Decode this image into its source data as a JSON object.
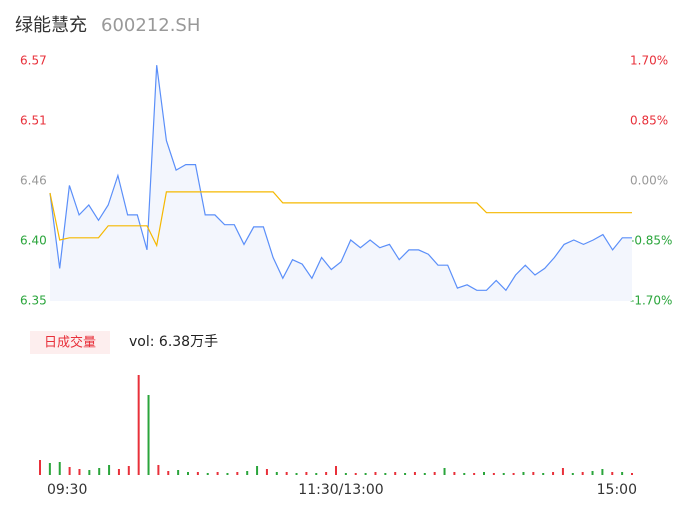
{
  "chart_data": [
    {
      "type": "line",
      "title": "绿能慧充",
      "subtitle": "600212.SH",
      "x": [
        0,
        4,
        8,
        12,
        16,
        20,
        24,
        28,
        32,
        36,
        40,
        44,
        48,
        52,
        56,
        60,
        64,
        68,
        72,
        76,
        80,
        84,
        88,
        92,
        96,
        100,
        104,
        108,
        112,
        116,
        120,
        124,
        128,
        132,
        136,
        140,
        144,
        148,
        152,
        156,
        160,
        164,
        168,
        172,
        176,
        180,
        184,
        188,
        192,
        196,
        200,
        204,
        208,
        212,
        216,
        220,
        224,
        228,
        232,
        236,
        240
      ],
      "xlim": [
        0,
        240
      ],
      "xticks": [
        {
          "value": 0,
          "label": "09:30"
        },
        {
          "value": 120,
          "label": "11:30/13:00"
        },
        {
          "value": 240,
          "label": "15:00"
        }
      ],
      "series": [
        {
          "color": "#5b8ff9",
          "values": [
            6.449,
            6.38,
            6.456,
            6.429,
            6.438,
            6.424,
            6.438,
            6.465,
            6.429,
            6.429,
            6.397,
            6.566,
            6.497,
            6.47,
            6.475,
            6.475,
            6.429,
            6.429,
            6.42,
            6.42,
            6.402,
            6.418,
            6.418,
            6.39,
            6.371,
            6.388,
            6.384,
            6.371,
            6.39,
            6.379,
            6.386,
            6.406,
            6.399,
            6.406,
            6.399,
            6.402,
            6.388,
            6.397,
            6.397,
            6.393,
            6.383,
            6.383,
            6.362,
            6.365,
            6.36,
            6.36,
            6.369,
            6.36,
            6.374,
            6.383,
            6.374,
            6.38,
            6.39,
            6.402,
            6.406,
            6.402,
            6.406,
            6.411,
            6.397,
            6.408,
            6.408
          ]
        },
        {
          "color": "#f5b800",
          "values": [
            6.449,
            6.406,
            6.408,
            6.408,
            6.408,
            6.408,
            6.419,
            6.419,
            6.419,
            6.419,
            6.419,
            6.401,
            6.45,
            6.45,
            6.45,
            6.45,
            6.45,
            6.45,
            6.45,
            6.45,
            6.45,
            6.45,
            6.45,
            6.45,
            6.44,
            6.44,
            6.44,
            6.44,
            6.44,
            6.44,
            6.44,
            6.44,
            6.44,
            6.44,
            6.44,
            6.44,
            6.44,
            6.44,
            6.44,
            6.44,
            6.44,
            6.44,
            6.44,
            6.44,
            6.44,
            6.431,
            6.431,
            6.431,
            6.431,
            6.431,
            6.431,
            6.431,
            6.431,
            6.431,
            6.431,
            6.431,
            6.431,
            6.431,
            6.431,
            6.431,
            6.431
          ]
        }
      ],
      "ylim": [
        6.3502,
        6.5698
      ],
      "yticks": [
        {
          "value": 6.5698,
          "label": "6.57"
        },
        {
          "value": 6.5149,
          "label": "6.51"
        },
        {
          "value": 6.46,
          "label": "6.46"
        },
        {
          "value": 6.4051,
          "label": "6.40"
        },
        {
          "value": 6.3502,
          "label": "6.35"
        }
      ],
      "y2lim": [
        -1.7,
        1.7
      ],
      "y2ticks": [
        {
          "value": 1.7,
          "label": "1.70%"
        },
        {
          "value": 0.85,
          "label": "0.85%"
        },
        {
          "value": 0,
          "label": "0.00%"
        },
        {
          "value": -0.85,
          "label": "-0.85%"
        },
        {
          "value": -1.7,
          "label": "-1.70%"
        }
      ]
    },
    {
      "type": "bar",
      "label": "日成交量",
      "annotation": "vol: 6.38万手",
      "x": [
        0,
        4,
        8,
        12,
        16,
        20,
        24,
        28,
        32,
        36,
        40,
        44,
        48,
        52,
        56,
        60,
        64,
        68,
        72,
        76,
        80,
        84,
        88,
        92,
        96,
        100,
        104,
        108,
        112,
        116,
        120,
        124,
        128,
        132,
        136,
        140,
        144,
        148,
        152,
        156,
        160,
        164,
        168,
        172,
        176,
        180,
        184,
        188,
        192,
        196,
        200,
        204,
        208,
        212,
        216,
        220,
        224,
        228,
        232,
        236,
        240
      ],
      "xlim": [
        0,
        240
      ],
      "ylim": [
        0,
        10000
      ],
      "values": [
        1500,
        1200,
        1300,
        800,
        600,
        500,
        700,
        1000,
        600,
        900,
        10000,
        8000,
        1000,
        400,
        500,
        300,
        300,
        200,
        300,
        200,
        300,
        400,
        900,
        600,
        300,
        300,
        200,
        300,
        200,
        300,
        900,
        200,
        200,
        200,
        300,
        200,
        300,
        200,
        300,
        200,
        300,
        700,
        300,
        200,
        200,
        300,
        200,
        200,
        200,
        300,
        300,
        200,
        300,
        700,
        200,
        300,
        400,
        600,
        300,
        300,
        200
      ],
      "colors": [
        "#e8303a",
        "#2aa53b",
        "#2aa53b",
        "#e8303a",
        "#e8303a",
        "#2aa53b",
        "#2aa53b",
        "#2aa53b",
        "#e8303a",
        "#e8303a",
        "#e8303a",
        "#2aa53b",
        "#e8303a",
        "#e8303a",
        "#2aa53b",
        "#2aa53b",
        "#e8303a",
        "#2aa53b",
        "#e8303a",
        "#2aa53b",
        "#e8303a",
        "#2aa53b",
        "#2aa53b",
        "#e8303a",
        "#2aa53b",
        "#e8303a",
        "#2aa53b",
        "#e8303a",
        "#2aa53b",
        "#e8303a",
        "#e8303a",
        "#2aa53b",
        "#e8303a",
        "#2aa53b",
        "#e8303a",
        "#2aa53b",
        "#e8303a",
        "#2aa53b",
        "#e8303a",
        "#2aa53b",
        "#e8303a",
        "#2aa53b",
        "#e8303a",
        "#2aa53b",
        "#e8303a",
        "#2aa53b",
        "#e8303a",
        "#2aa53b",
        "#e8303a",
        "#2aa53b",
        "#e8303a",
        "#2aa53b",
        "#e8303a",
        "#e8303a",
        "#2aa53b",
        "#e8303a",
        "#2aa53b",
        "#2aa53b",
        "#e8303a",
        "#2aa53b",
        "#e8303a"
      ]
    }
  ]
}
